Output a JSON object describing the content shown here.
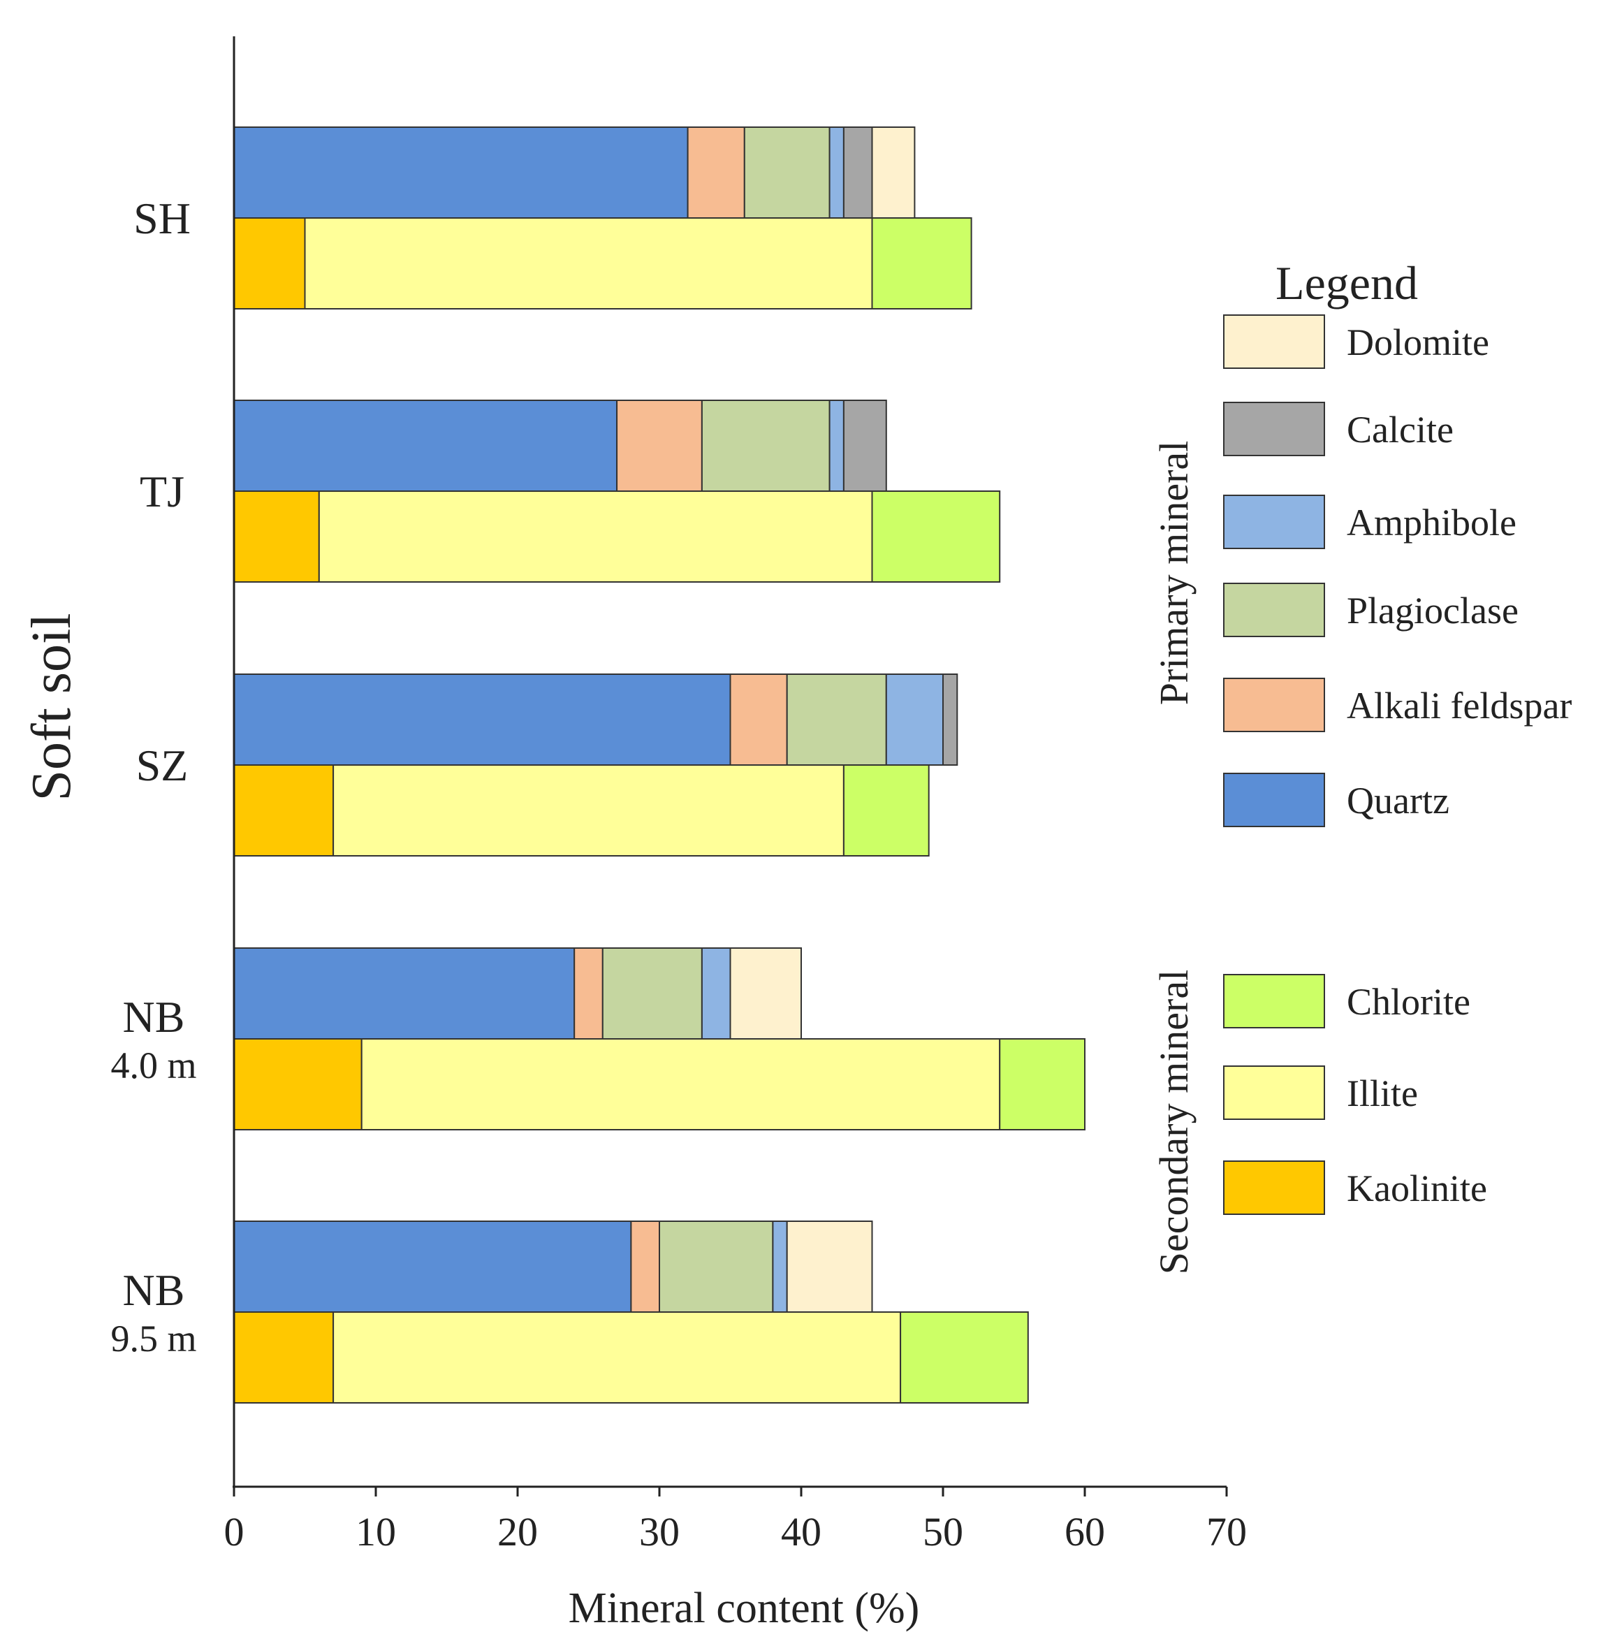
{
  "chart_data": {
    "type": "bar",
    "orientation": "horizontal",
    "stacked": true,
    "ylabel": "Soft soil",
    "xlabel": "Mineral content (%)",
    "xlim": [
      0,
      70
    ],
    "xticks": [
      "0",
      "10",
      "20",
      "30",
      "40",
      "50",
      "60",
      "70"
    ],
    "categories": [
      {
        "line1": "SH",
        "line2": ""
      },
      {
        "line1": "TJ",
        "line2": ""
      },
      {
        "line1": "SZ",
        "line2": ""
      },
      {
        "line1": "NB",
        "line2": "4.0 m"
      },
      {
        "line1": "NB",
        "line2": "9.5 m"
      }
    ],
    "primary_series": [
      {
        "name": "Quartz",
        "color": "#5B8ED6",
        "values": [
          32,
          27,
          35,
          24,
          28
        ]
      },
      {
        "name": "Alkali feldspar",
        "color": "#F7BC92",
        "values": [
          4,
          6,
          4,
          2,
          2
        ]
      },
      {
        "name": "Plagioclase",
        "color": "#C5D6A0",
        "values": [
          6,
          9,
          7,
          7,
          8
        ]
      },
      {
        "name": "Amphibole",
        "color": "#8EB4E3",
        "values": [
          1,
          1,
          4,
          2,
          1
        ]
      },
      {
        "name": "Calcite",
        "color": "#A6A6A6",
        "values": [
          2,
          3,
          1,
          0,
          0
        ]
      },
      {
        "name": "Dolomite",
        "color": "#FEF1CE",
        "values": [
          3,
          0,
          0,
          5,
          6
        ]
      }
    ],
    "secondary_series": [
      {
        "name": "Kaolinite",
        "color": "#FFC800",
        "values": [
          5,
          6,
          7,
          9,
          7
        ]
      },
      {
        "name": "Illite",
        "color": "#FFFF99",
        "values": [
          40,
          39,
          36,
          45,
          40
        ]
      },
      {
        "name": "Chlorite",
        "color": "#CCFF66",
        "values": [
          7,
          9,
          6,
          6,
          9
        ]
      }
    ],
    "legend": {
      "title": "Legend",
      "position": "right",
      "primary_group_label": "Primary mineral",
      "secondary_group_label": "Secondary mineral",
      "primary_order": [
        "Dolomite",
        "Calcite",
        "Amphibole",
        "Plagioclase",
        "Alkali feldspar",
        "Quartz"
      ],
      "secondary_order": [
        "Chlorite",
        "Illite",
        "Kaolinite"
      ]
    }
  }
}
